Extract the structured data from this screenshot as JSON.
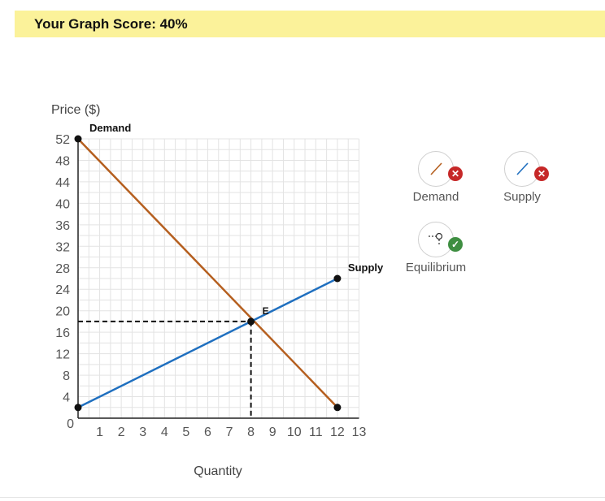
{
  "header": {
    "score_text": "Your Graph Score: 40%"
  },
  "tools": [
    {
      "label": "Demand",
      "status": "incorrect",
      "line_color": "#b55f1f",
      "badge_color": "#c62828",
      "badge_icon": "x-icon"
    },
    {
      "label": "Supply",
      "status": "incorrect",
      "line_color": "#1f6fbf",
      "badge_color": "#c62828",
      "badge_icon": "x-icon"
    },
    {
      "label": "Equilibrium",
      "status": "correct",
      "badge_color": "#3e8e41",
      "badge_icon": "check-icon"
    }
  ],
  "chart_data": {
    "type": "line",
    "ylabel": "Price ($)",
    "xlabel": "Quantity",
    "xlim": [
      0,
      13
    ],
    "ylim": [
      0,
      52
    ],
    "x_ticks": [
      1,
      2,
      3,
      4,
      5,
      6,
      7,
      8,
      9,
      10,
      11,
      12,
      13
    ],
    "y_ticks": [
      0,
      4,
      8,
      12,
      16,
      20,
      24,
      28,
      32,
      36,
      40,
      44,
      48,
      52
    ],
    "grid": true,
    "series": [
      {
        "name": "Demand",
        "color": "#b55f1f",
        "points": [
          [
            0,
            52
          ],
          [
            12,
            2
          ]
        ]
      },
      {
        "name": "Supply",
        "color": "#1f6fbf",
        "points": [
          [
            0,
            2
          ],
          [
            12,
            26
          ]
        ]
      }
    ],
    "equilibrium": {
      "label": "E",
      "x": 8,
      "y": 18
    }
  }
}
